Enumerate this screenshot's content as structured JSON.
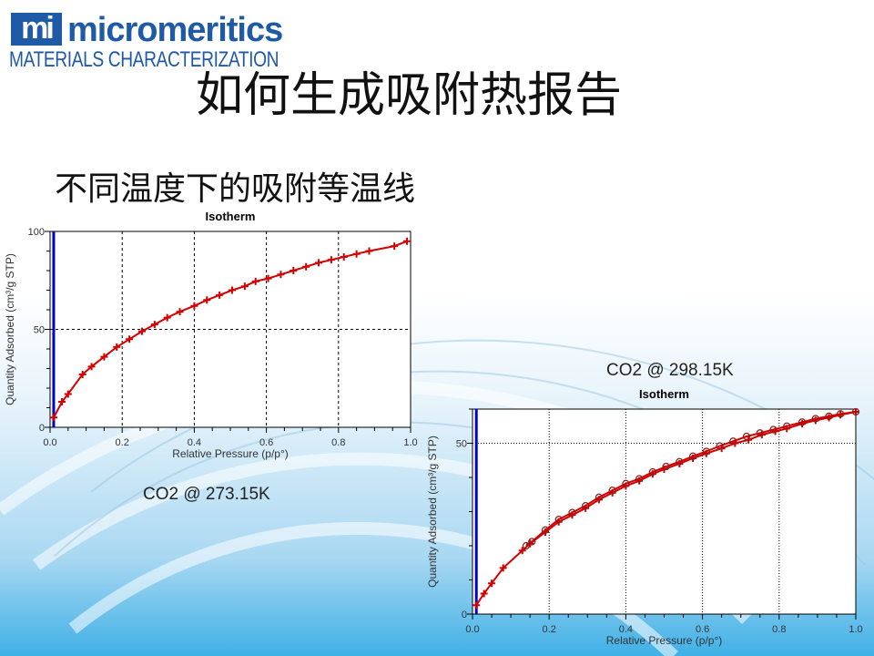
{
  "logo": {
    "mark": "mi",
    "brand": "micromeritics",
    "tagline": "MATERIALS CHARACTERIZATION",
    "color": "#1f5aa6"
  },
  "slide": {
    "title": "如何生成吸附热报告",
    "subtitle": "不同温度下的吸附等温线"
  },
  "captions": {
    "chart1": "CO2 @ 273.15K",
    "chart2": "CO2 @ 298.15K"
  },
  "chart_data": [
    {
      "type": "line",
      "title": "Isotherm",
      "xlabel": "Relative Pressure (p/p°)",
      "ylabel": "Quantity Adsorbed (cm³/g STP)",
      "xlim": [
        0,
        1.0
      ],
      "ylim": [
        0,
        100
      ],
      "xticks": [
        "0.0",
        "0.2",
        "0.4",
        "0.6",
        "0.8",
        "1.0"
      ],
      "yticks": [
        "0",
        "50",
        "100"
      ],
      "grid": "dashed at x 0.2/0.4/0.6/0.8 and y 50",
      "line_color": "#d40000",
      "marker_line_color": "#0000cc",
      "marker_line_x": 0.01,
      "series": [
        {
          "marker": "cross",
          "x": [
            0.01,
            0.033,
            0.05,
            0.09,
            0.115,
            0.15,
            0.185,
            0.22,
            0.255,
            0.29,
            0.325,
            0.36,
            0.4,
            0.435,
            0.47,
            0.505,
            0.54,
            0.57,
            0.605,
            0.64,
            0.675,
            0.71,
            0.745,
            0.78,
            0.815,
            0.85,
            0.885,
            0.955,
            0.99
          ],
          "y": [
            5,
            13,
            17,
            27,
            31,
            36,
            41,
            45,
            49,
            52.5,
            56,
            59,
            62,
            65,
            67.5,
            70,
            72,
            74.5,
            76,
            78,
            80,
            82,
            84,
            85.5,
            87,
            88.5,
            90,
            92.5,
            95
          ]
        }
      ]
    },
    {
      "type": "line",
      "title": "Isotherm",
      "xlabel": "Relative Pressure (p/p°)",
      "ylabel": "Quantity Adsorbed (cm³/g STP)",
      "xlim": [
        0,
        1.0
      ],
      "ylim": [
        0,
        60
      ],
      "xticks": [
        "0.0",
        "0.2",
        "0.4",
        "0.6",
        "0.8",
        "1.0"
      ],
      "yticks": [
        "0",
        "50"
      ],
      "grid": "dotted at x 0.2/0.4/0.6/0.8 and y 50",
      "line_color": "#d40000",
      "marker_line_color": "#0000cc",
      "marker_line_x": 0.01,
      "series": [
        {
          "marker": "cross",
          "x": [
            0.01,
            0.03,
            0.05,
            0.08,
            0.13,
            0.15,
            0.19,
            0.225,
            0.26,
            0.295,
            0.33,
            0.365,
            0.4,
            0.435,
            0.47,
            0.5,
            0.54,
            0.575,
            0.61,
            0.65,
            0.685,
            0.72,
            0.755,
            0.79,
            0.82,
            0.86,
            0.895,
            0.93,
            0.96,
            1.0
          ],
          "y": [
            2.6,
            6,
            9,
            13.5,
            18.6,
            20.6,
            24,
            27,
            29,
            31,
            33.5,
            35.5,
            37.5,
            39,
            41,
            42.4,
            44,
            45.6,
            47,
            48.5,
            50,
            51,
            52.5,
            53.5,
            54.3,
            55.7,
            56.7,
            57.5,
            58.3,
            59.2
          ]
        },
        {
          "marker": "circle",
          "x": [
            1.0,
            0.96,
            0.93,
            0.895,
            0.86,
            0.82,
            0.785,
            0.75,
            0.715,
            0.68,
            0.645,
            0.61,
            0.575,
            0.54,
            0.505,
            0.47,
            0.435,
            0.4,
            0.365,
            0.33,
            0.295,
            0.26,
            0.225,
            0.19,
            0.155,
            0.14
          ],
          "y": [
            59.2,
            58.6,
            57.9,
            57.2,
            56.2,
            55,
            54,
            53,
            52,
            50.6,
            49.2,
            47.6,
            46.2,
            44.6,
            43.2,
            41.6,
            39.6,
            38.2,
            36.2,
            34.2,
            31.7,
            29.7,
            27.7,
            24.6,
            21.2,
            20
          ]
        }
      ]
    }
  ]
}
